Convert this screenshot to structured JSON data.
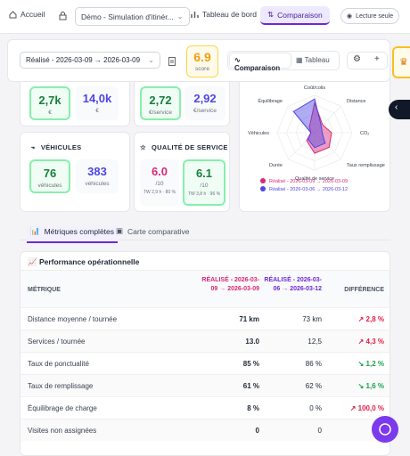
{
  "nav": {
    "home": "Accueil",
    "project": "Démo - Simulation d'itinér...",
    "dashboard": "Tableau de bord",
    "compare": "Comparaison",
    "readonly": "Lecture seule"
  },
  "toolbar": {
    "period": "Réalisé - 2026-03-09 → 2026-03-09",
    "score": "6.9",
    "score_label": "score",
    "view_compare": "Comparaison",
    "view_table": "Tableau"
  },
  "cards": {
    "cost": [
      {
        "value": "2,7k",
        "unit": "€"
      },
      {
        "value": "14,0k",
        "unit": "€"
      }
    ],
    "unit_cost": [
      {
        "value": "2,72",
        "unit": "€/service"
      },
      {
        "value": "2,92",
        "unit": "€/service"
      }
    ],
    "vehicles": {
      "title": "VÉHICULES",
      "metrics": [
        {
          "value": "76",
          "unit": "véhicules"
        },
        {
          "value": "383",
          "unit": "véhicules"
        }
      ]
    },
    "quality": {
      "title": "QUALITÉ DE SERVICE",
      "metrics": [
        {
          "value": "6.0",
          "unit": "/10",
          "detail": "TW 2,9 h · 80 %"
        },
        {
          "value": "6.1",
          "unit": "/10",
          "detail": "TW 3,8 h · 96 %"
        }
      ]
    }
  },
  "radar": {
    "type": "radar",
    "axes": [
      "Coût/colis",
      "Distance",
      "CO₂",
      "Taux remplissage",
      "Qualité de service",
      "Durée",
      "Véhicules",
      "Équilibrage"
    ],
    "rlim": [
      0,
      100
    ],
    "series": [
      {
        "name": "Réalisé - 2026-03-09 → 2026-03-09",
        "color": "#db2777",
        "values": [
          80,
          30,
          45,
          55,
          55,
          30,
          10,
          20
        ]
      },
      {
        "name": "Réalisé - 2026-03-06 → 2026-03-12",
        "color": "#4f46e5",
        "values": [
          90,
          25,
          20,
          40,
          40,
          25,
          10,
          80
        ]
      }
    ]
  },
  "tabs": [
    "Métriques complètes",
    "Carte comparative"
  ],
  "table": {
    "title": "📈 Performance opérationnelle",
    "columns": [
      "MÉTRIQUE",
      "RÉALISÉ - 2026-03-09 → 2026-03-09",
      "RÉALISÉ - 2026-03-06 → 2026-03-12",
      "DIFFÉRENCE"
    ],
    "rows": [
      {
        "metric": "Distance moyenne / tournée",
        "a": "71 km",
        "b": "73 km",
        "diff": "↗ 2,8 %",
        "diff_color": "#e11d48"
      },
      {
        "metric": "Services / tournée",
        "a": "13.0",
        "b": "12,5",
        "diff": "↗ 4,3 %",
        "diff_color": "#e11d48"
      },
      {
        "metric": "Taux de ponctualité",
        "a": "85 %",
        "b": "86 %",
        "diff": "↘ 1,2 %",
        "diff_color": "#16a34a"
      },
      {
        "metric": "Taux de remplissage",
        "a": "61 %",
        "b": "62 %",
        "diff": "↘ 1,6 %",
        "diff_color": "#16a34a"
      },
      {
        "metric": "Équilibrage de charge",
        "a": "8 %",
        "b": "0 %",
        "diff": "↗ 100,0 %",
        "diff_color": "#e11d48"
      },
      {
        "metric": "Visites non assignées",
        "a": "0",
        "b": "0"
      }
    ]
  }
}
